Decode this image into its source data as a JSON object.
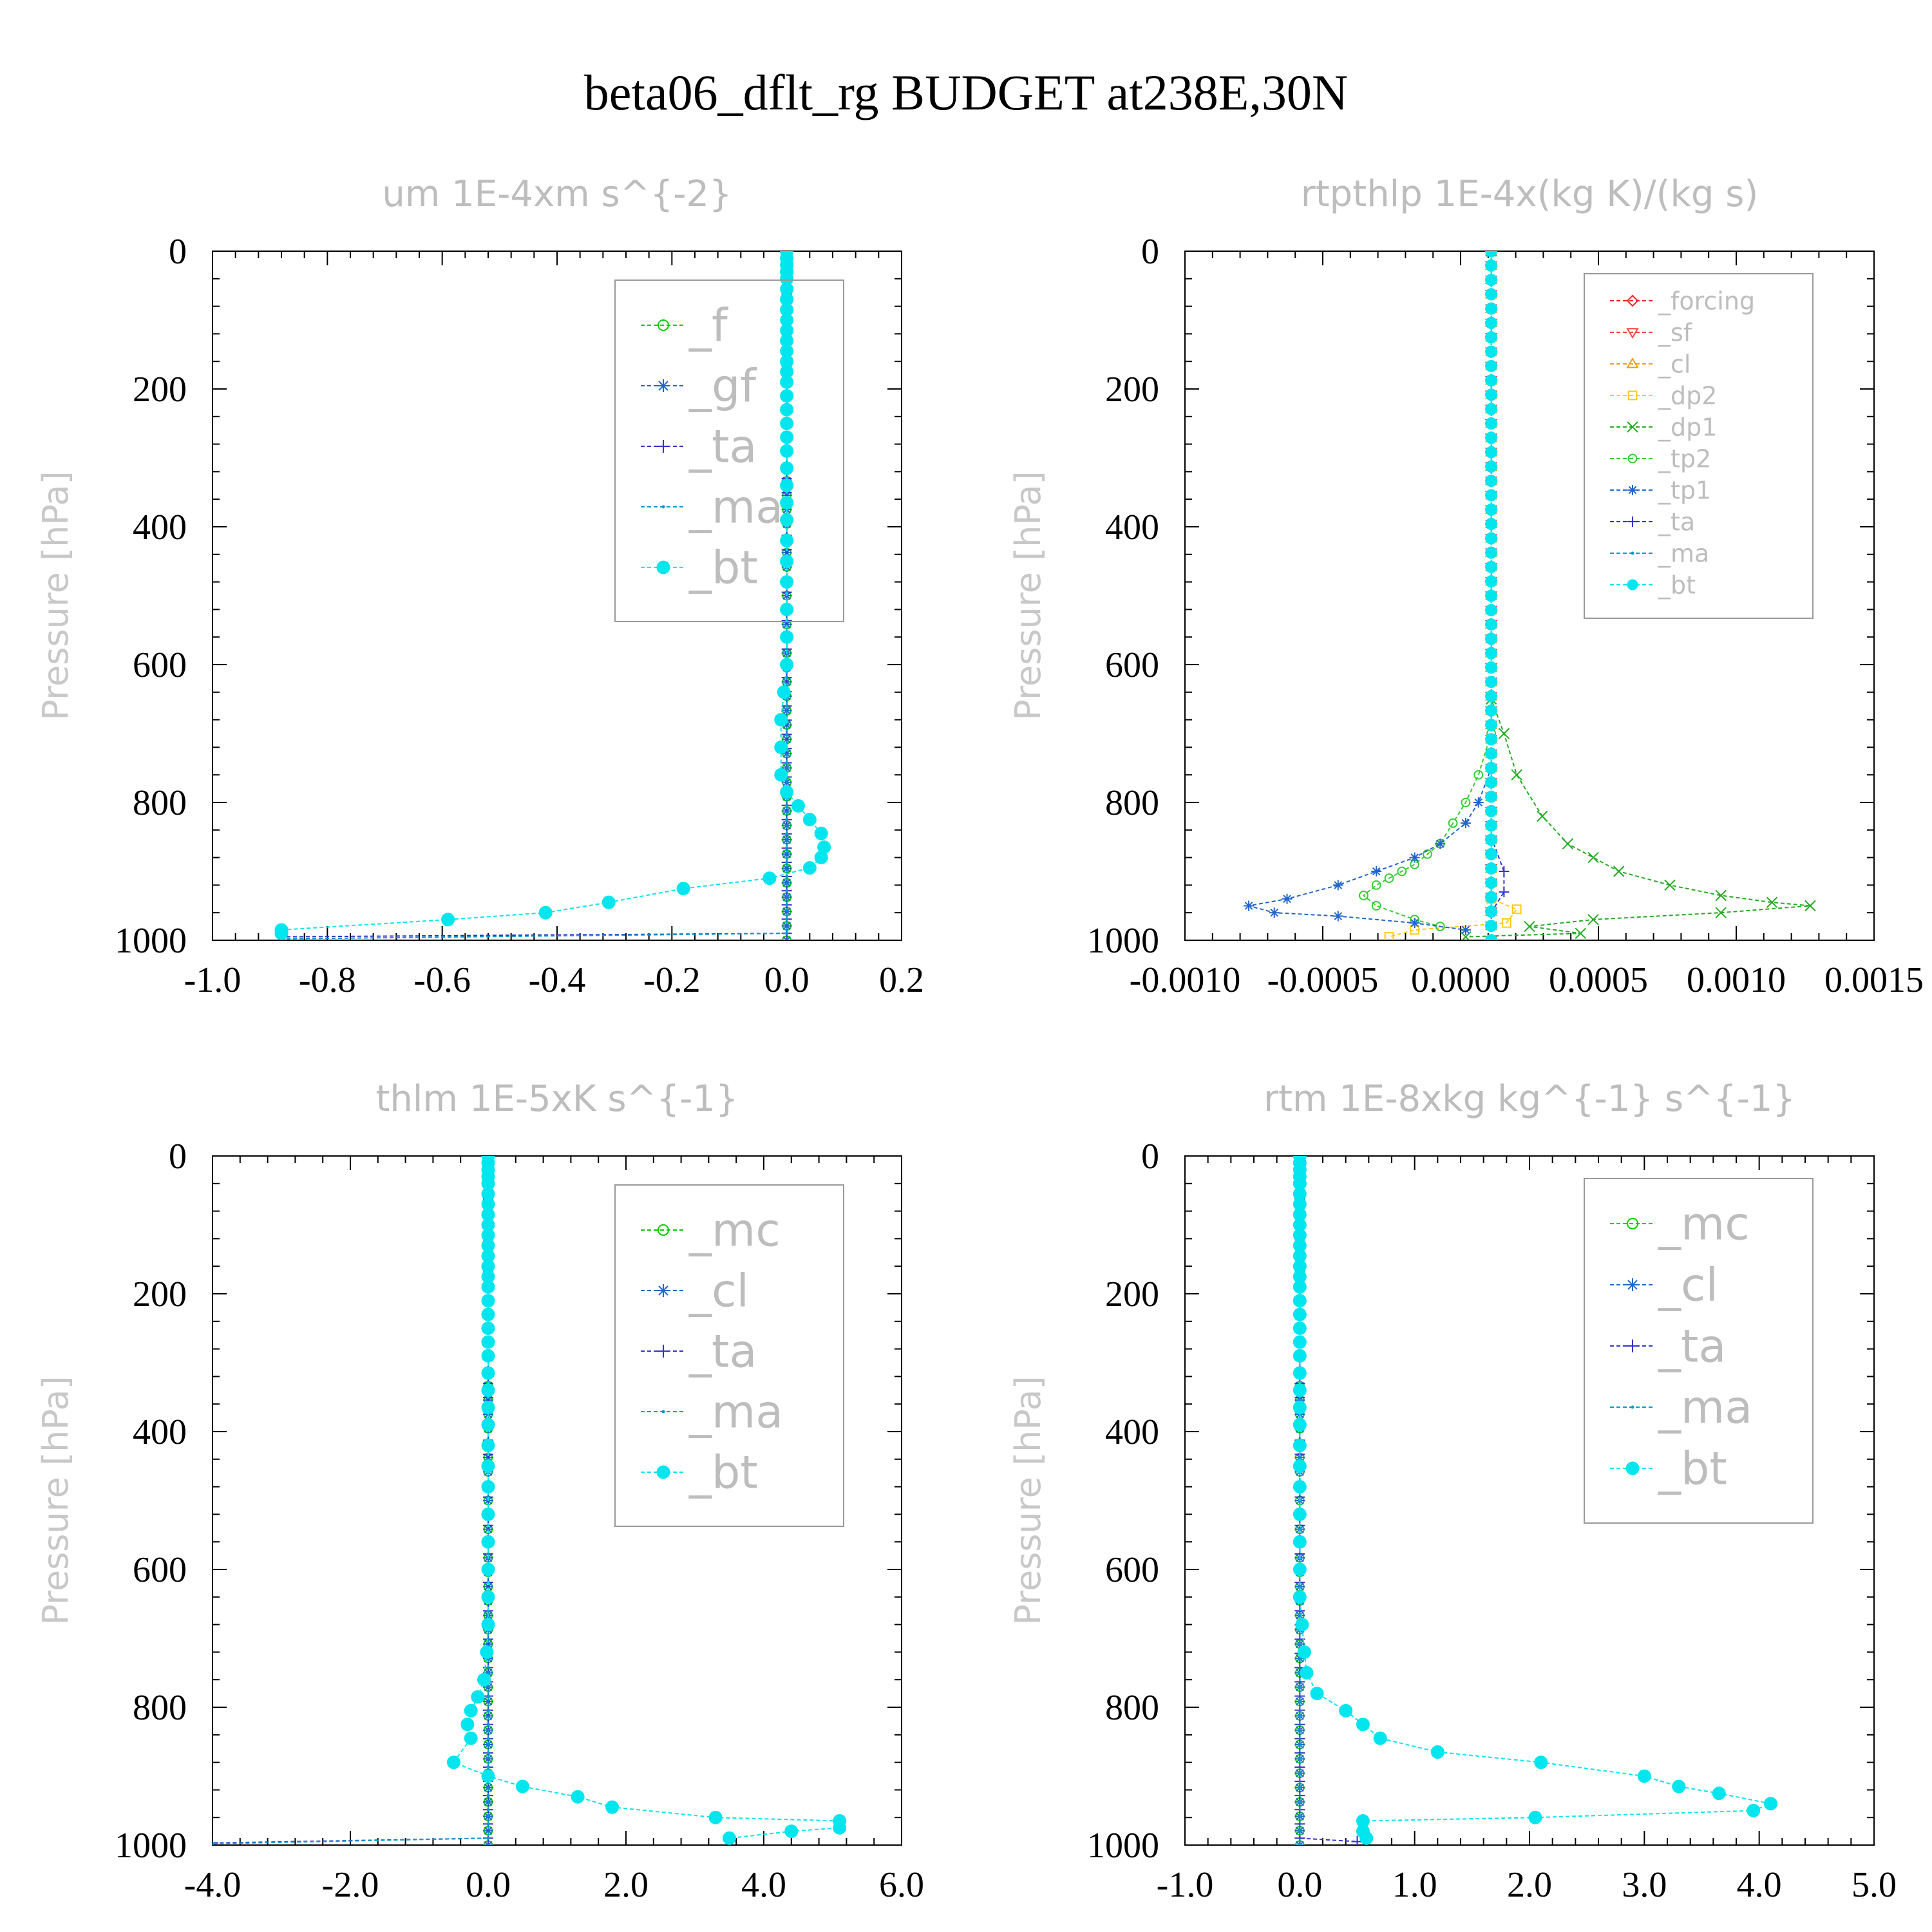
{
  "figure_title": "beta06_dflt_rg  BUDGET at238E,30N",
  "colors": {
    "_f": "#00cc00",
    "_gf": "#2266cc",
    "_ta": "#3333cc",
    "_ma": "#0099cc",
    "_bt": "#00e5ee",
    "_forcing": "#ee2222",
    "_sf": "#ff4444",
    "_cl_rtp": "#ff9900",
    "_dp2": "#ffcc00",
    "_dp1": "#22aa22",
    "_tp2": "#33cc33",
    "_tp1": "#2266cc",
    "_mc": "#00cc00",
    "_cl": "#2266cc"
  },
  "chart_data": [
    {
      "type": "line",
      "title": "um   1E-4xm s^{-2}",
      "ylabel": "Pressure [hPa]",
      "xlim": [
        -1.0,
        0.2
      ],
      "ylim": [
        1000,
        0
      ],
      "xticks": [
        "-1.0",
        "-0.8",
        "-0.6",
        "-0.4",
        "-0.2",
        "0.0",
        "0.2"
      ],
      "yticks": [
        "0",
        "200",
        "400",
        "600",
        "800",
        "1000"
      ],
      "legend_position": "top-right",
      "series": [
        {
          "name": "_f",
          "marker": "circle-open",
          "color_key": "_f",
          "x": [
            0,
            0
          ],
          "y": [
            0,
            1000
          ]
        },
        {
          "name": "_gf",
          "marker": "star",
          "color_key": "_gf",
          "x": [
            0,
            0
          ],
          "y": [
            0,
            1000
          ]
        },
        {
          "name": "_ta",
          "marker": "plus",
          "color_key": "_ta",
          "x": [
            0,
            0,
            -0.88
          ],
          "y": [
            0,
            990,
            995
          ]
        },
        {
          "name": "_ma",
          "marker": "dot",
          "color_key": "_ma",
          "x": [
            0,
            0,
            -0.88
          ],
          "y": [
            0,
            990,
            998
          ]
        },
        {
          "name": "_bt",
          "marker": "filled-circle",
          "color_key": "_bt",
          "x": [
            0,
            0,
            0,
            0,
            0,
            0,
            0,
            0,
            0,
            0,
            0,
            0,
            0,
            0,
            0,
            0,
            0,
            0,
            0,
            0,
            0,
            0,
            0,
            0,
            0,
            0,
            0,
            0,
            0,
            0,
            -0.005,
            -0.01,
            -0.01,
            -0.01,
            0.0,
            0.02,
            0.04,
            0.06,
            0.065,
            0.06,
            0.04,
            -0.03,
            -0.18,
            -0.31,
            -0.42,
            -0.59,
            -0.88,
            -0.88
          ],
          "y": [
            0,
            10,
            20,
            30,
            40,
            55,
            70,
            85,
            100,
            115,
            130,
            145,
            160,
            175,
            190,
            210,
            230,
            250,
            270,
            290,
            315,
            340,
            365,
            390,
            420,
            450,
            480,
            520,
            560,
            600,
            640,
            680,
            720,
            760,
            785,
            805,
            825,
            845,
            865,
            880,
            895,
            910,
            925,
            945,
            960,
            970,
            985,
            990
          ]
        }
      ]
    },
    {
      "type": "line",
      "title": "rtpthlp   1E-4x(kg K)/(kg s)",
      "ylabel": "Pressure [hPa]",
      "xlim": [
        -0.0012,
        0.0015
      ],
      "ylim": [
        1000,
        0
      ],
      "xticks": [
        "-0.0010",
        "-0.0005",
        "0.0000",
        "0.0005",
        "0.0010",
        "0.0015"
      ],
      "yticks": [
        "0",
        "200",
        "400",
        "600",
        "800",
        "1000"
      ],
      "legend_position": "top-right",
      "series": [
        {
          "name": "_forcing",
          "marker": "diamond-open",
          "color_key": "_forcing",
          "x": [
            0,
            0
          ],
          "y": [
            0,
            1000
          ]
        },
        {
          "name": "_sf",
          "marker": "triangle-down",
          "color_key": "_sf",
          "x": [
            0,
            0
          ],
          "y": [
            0,
            1000
          ]
        },
        {
          "name": "_cl",
          "marker": "triangle-up",
          "color_key": "_cl_rtp",
          "x": [
            0,
            0
          ],
          "y": [
            0,
            1000
          ]
        },
        {
          "name": "_dp2",
          "marker": "square-open",
          "color_key": "_dp2",
          "x": [
            0,
            0,
            0.0001,
            6e-05,
            -0.0003,
            -0.0004
          ],
          "y": [
            0,
            940,
            955,
            975,
            985,
            995
          ]
        },
        {
          "name": "_dp1",
          "marker": "x",
          "color_key": "_dp1",
          "x": [
            0,
            0,
            5e-05,
            0.0001,
            0.0002,
            0.0003,
            0.0004,
            0.0005,
            0.0007,
            0.0009,
            0.0011,
            0.00125,
            0.0009,
            0.0004,
            0.00015,
            0.00035,
            -0.0001
          ],
          "y": [
            0,
            650,
            700,
            760,
            820,
            860,
            880,
            900,
            920,
            935,
            945,
            950,
            960,
            970,
            980,
            990,
            995
          ]
        },
        {
          "name": "_tp2",
          "marker": "circle-open",
          "color_key": "_tp2",
          "x": [
            0,
            0,
            -5e-05,
            -0.0001,
            -0.00015,
            -0.0002,
            -0.00025,
            -0.0003,
            -0.00035,
            -0.0004,
            -0.00045,
            -0.0005,
            -0.00045,
            -0.0003,
            -0.0002
          ],
          "y": [
            0,
            700,
            760,
            800,
            830,
            860,
            875,
            890,
            900,
            910,
            920,
            935,
            950,
            970,
            980
          ]
        },
        {
          "name": "_tp1",
          "marker": "star",
          "color_key": "_tp1",
          "x": [
            0,
            0,
            -5e-05,
            -0.0001,
            -0.0002,
            -0.0003,
            -0.00045,
            -0.0006,
            -0.0008,
            -0.00095,
            -0.00085,
            -0.0006,
            -0.0003,
            -0.0001
          ],
          "y": [
            0,
            750,
            800,
            830,
            860,
            880,
            900,
            920,
            940,
            950,
            960,
            965,
            975,
            985
          ]
        },
        {
          "name": "_ta",
          "marker": "plus",
          "color_key": "_ta",
          "x": [
            0,
            0,
            5e-05,
            5e-05,
            0,
            0
          ],
          "y": [
            0,
            850,
            900,
            930,
            960,
            1000
          ]
        },
        {
          "name": "_ma",
          "marker": "dot",
          "color_key": "_ma",
          "x": [
            0,
            0
          ],
          "y": [
            0,
            1000
          ]
        },
        {
          "name": "_bt",
          "marker": "filled-circle",
          "color_key": "_bt",
          "x": [
            0,
            0
          ],
          "y": [
            0,
            1000
          ]
        }
      ]
    },
    {
      "type": "line",
      "title": "thlm   1E-5xK s^{-1}",
      "ylabel": "Pressure [hPa]",
      "xlim": [
        -4.0,
        6.0
      ],
      "ylim": [
        1000,
        0
      ],
      "xticks": [
        "-4.0",
        "-2.0",
        "0.0",
        "2.0",
        "4.0",
        "6.0"
      ],
      "yticks": [
        "0",
        "200",
        "400",
        "600",
        "800",
        "1000"
      ],
      "legend_position": "top-right",
      "series": [
        {
          "name": "_mc",
          "marker": "circle-open",
          "color_key": "_mc",
          "x": [
            0,
            0
          ],
          "y": [
            0,
            1000
          ]
        },
        {
          "name": "_cl",
          "marker": "star",
          "color_key": "_cl",
          "x": [
            0,
            0
          ],
          "y": [
            0,
            1000
          ]
        },
        {
          "name": "_ta",
          "marker": "plus",
          "color_key": "_ta",
          "x": [
            0,
            0,
            -4.0
          ],
          "y": [
            0,
            990,
            997
          ]
        },
        {
          "name": "_ma",
          "marker": "dot",
          "color_key": "_ma",
          "x": [
            0,
            0,
            -4.0
          ],
          "y": [
            0,
            990,
            998
          ]
        },
        {
          "name": "_bt",
          "marker": "filled-circle",
          "color_key": "_bt",
          "x": [
            0,
            0,
            0,
            0,
            0,
            0,
            0,
            0,
            0,
            0,
            0,
            0,
            0,
            0,
            0,
            0,
            0,
            0,
            0,
            0,
            0,
            0,
            0,
            0,
            0,
            0,
            0,
            0,
            0,
            0,
            0,
            0,
            -0.02,
            -0.06,
            -0.15,
            -0.25,
            -0.3,
            -0.25,
            -0.5,
            0.0,
            0.5,
            1.3,
            1.8,
            3.3,
            5.1,
            5.1,
            4.4,
            3.5
          ],
          "y": [
            0,
            10,
            20,
            30,
            40,
            55,
            70,
            85,
            100,
            115,
            130,
            145,
            160,
            175,
            190,
            210,
            230,
            250,
            270,
            290,
            315,
            340,
            365,
            390,
            420,
            450,
            480,
            520,
            560,
            600,
            640,
            680,
            720,
            760,
            785,
            805,
            825,
            845,
            880,
            900,
            915,
            930,
            945,
            960,
            965,
            975,
            980,
            990
          ]
        }
      ]
    },
    {
      "type": "line",
      "title": "rtm   1E-8xkg kg^{-1} s^{-1}",
      "ylabel": "Pressure [hPa]",
      "xlim": [
        -1.0,
        5.0
      ],
      "ylim": [
        1000,
        0
      ],
      "xticks": [
        "-1.0",
        "0.0",
        "1.0",
        "2.0",
        "3.0",
        "4.0",
        "5.0"
      ],
      "yticks": [
        "0",
        "200",
        "400",
        "600",
        "800",
        "1000"
      ],
      "legend_position": "top-right",
      "series": [
        {
          "name": "_mc",
          "marker": "circle-open",
          "color_key": "_mc",
          "x": [
            0,
            0
          ],
          "y": [
            0,
            1000
          ]
        },
        {
          "name": "_cl",
          "marker": "star",
          "color_key": "_cl",
          "x": [
            0,
            0
          ],
          "y": [
            0,
            1000
          ]
        },
        {
          "name": "_ta",
          "marker": "plus",
          "color_key": "_ta",
          "x": [
            0,
            0,
            0.5
          ],
          "y": [
            0,
            990,
            995
          ]
        },
        {
          "name": "_ma",
          "marker": "dot",
          "color_key": "_ma",
          "x": [
            0,
            0
          ],
          "y": [
            0,
            1000
          ]
        },
        {
          "name": "_bt",
          "marker": "filled-circle",
          "color_key": "_bt",
          "x": [
            0,
            0,
            0,
            0,
            0,
            0,
            0,
            0,
            0,
            0,
            0,
            0,
            0,
            0,
            0,
            0,
            0,
            0,
            0,
            0,
            0,
            0,
            0,
            0,
            0,
            0,
            0,
            0,
            0,
            0,
            0,
            0.02,
            0.04,
            0.06,
            0.15,
            0.4,
            0.55,
            0.7,
            1.2,
            2.1,
            3.0,
            3.3,
            3.65,
            4.1,
            3.95,
            2.05,
            0.55,
            0.55,
            0.58
          ],
          "y": [
            0,
            10,
            20,
            30,
            40,
            55,
            70,
            85,
            100,
            115,
            130,
            145,
            160,
            175,
            190,
            210,
            230,
            250,
            270,
            290,
            315,
            340,
            365,
            390,
            420,
            450,
            480,
            520,
            560,
            600,
            640,
            680,
            720,
            750,
            780,
            805,
            825,
            845,
            865,
            880,
            900,
            915,
            925,
            940,
            950,
            960,
            965,
            980,
            990
          ]
        }
      ]
    }
  ]
}
